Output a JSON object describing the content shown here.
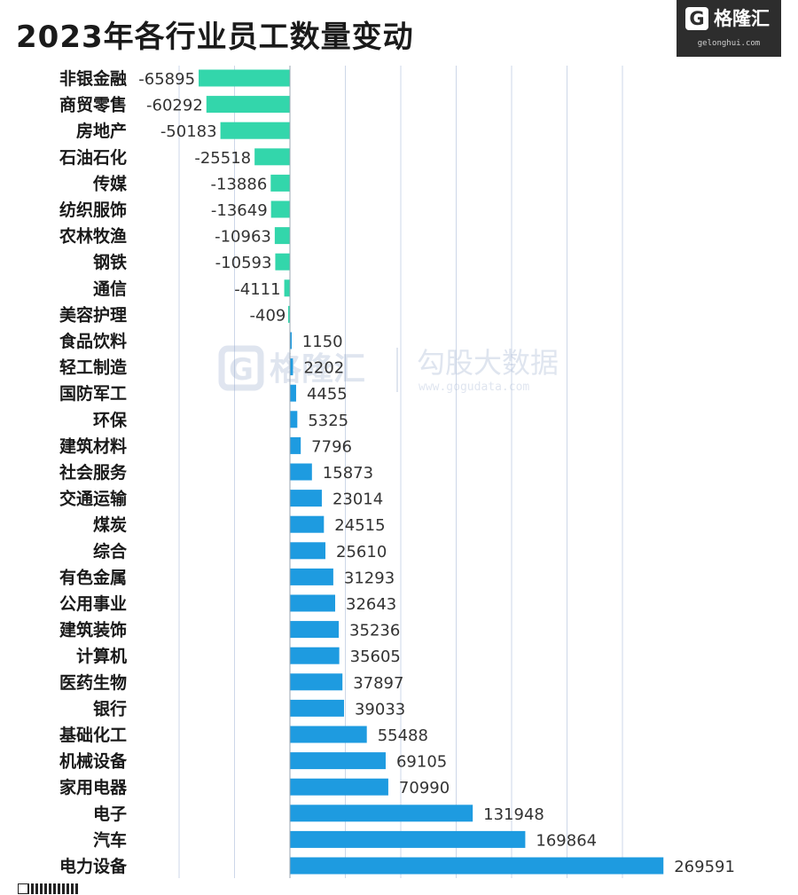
{
  "title": "2023年各行业员工数量变动",
  "logo": {
    "mark": "G",
    "name": "格隆汇",
    "url": "gelonghui.com"
  },
  "watermark": {
    "mark": "G",
    "name": "格隆汇",
    "brand": "勾股大数据",
    "url": "www.gogudata.com"
  },
  "colors": {
    "negative": "#33d6ab",
    "positive": "#1e9be0",
    "grid": "#cdd7e8",
    "axis": "#9aa4b0",
    "label": "#1a1a1a",
    "value": "#333333"
  },
  "chart_data": {
    "type": "bar",
    "orientation": "horizontal",
    "categories": [
      "非银金融",
      "商贸零售",
      "房地产",
      "石油石化",
      "传媒",
      "纺织服饰",
      "农林牧渔",
      "钢铁",
      "通信",
      "美容护理",
      "食品饮料",
      "轻工制造",
      "国防军工",
      "环保",
      "建筑材料",
      "社会服务",
      "交通运输",
      "煤炭",
      "综合",
      "有色金属",
      "公用事业",
      "建筑装饰",
      "计算机",
      "医药生物",
      "银行",
      "基础化工",
      "机械设备",
      "家用电器",
      "电子",
      "汽车",
      "电力设备"
    ],
    "values": [
      -65895,
      -60292,
      -50183,
      -25518,
      -13886,
      -13649,
      -10963,
      -10593,
      -4111,
      -409,
      1150,
      2202,
      4455,
      5325,
      7796,
      15873,
      23014,
      24515,
      25610,
      31293,
      32643,
      35236,
      35605,
      37897,
      39033,
      55488,
      69105,
      70990,
      131948,
      169864,
      269591
    ],
    "xlim": [
      -80000,
      270000
    ],
    "grid": true,
    "grid_lines": [
      -80000,
      -40000,
      0,
      40000,
      80000,
      120000,
      160000,
      200000,
      240000
    ]
  }
}
